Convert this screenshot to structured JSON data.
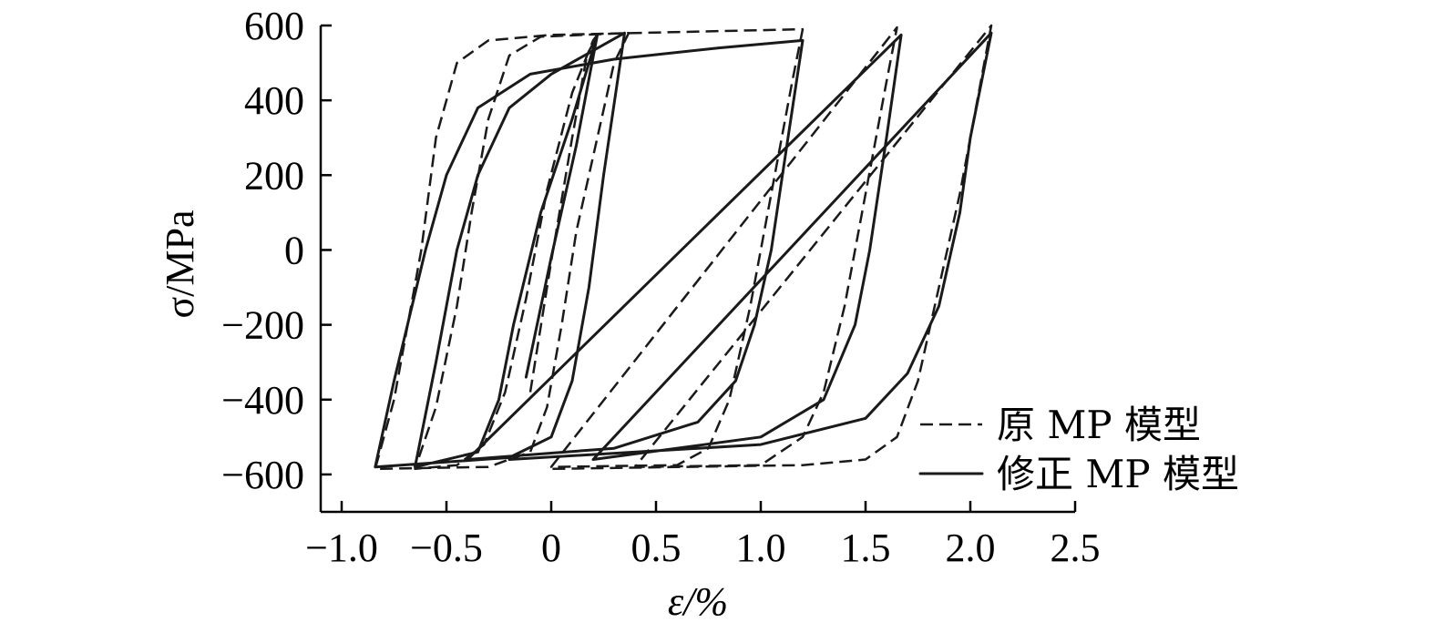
{
  "chart_data": {
    "type": "line",
    "title": "",
    "xlabel": "ε/%",
    "ylabel": "σ/MPa",
    "xlim": [
      -1.1,
      2.5
    ],
    "ylim": [
      -700,
      600
    ],
    "x_ticks": [
      -1.0,
      -0.5,
      0,
      0.5,
      1.0,
      1.5,
      2.0,
      2.5
    ],
    "x_tick_labels": [
      "−1.0",
      "−0.5",
      "0",
      "0.5",
      "1.0",
      "1.5",
      "2.0",
      "2.5"
    ],
    "y_ticks": [
      -600,
      -400,
      -200,
      0,
      200,
      400,
      600
    ],
    "y_tick_labels": [
      "−600",
      "−400",
      "−200",
      "0",
      "200",
      "400",
      "600"
    ],
    "grid": false,
    "legend_position": "bottom-right",
    "series": [
      {
        "name": "原 MP 模型",
        "style": "dashed",
        "points": [
          [
            -0.1,
            -380
          ],
          [
            0.0,
            -30
          ],
          [
            0.1,
            300
          ],
          [
            0.17,
            520
          ],
          [
            0.22,
            575
          ],
          [
            0.2,
            560
          ],
          [
            0.1,
            420
          ],
          [
            -0.02,
            160
          ],
          [
            -0.12,
            -130
          ],
          [
            -0.22,
            -380
          ],
          [
            -0.32,
            -520
          ],
          [
            -0.45,
            -575
          ],
          [
            -0.65,
            -585
          ],
          [
            -0.55,
            -420
          ],
          [
            -0.45,
            -150
          ],
          [
            -0.38,
            100
          ],
          [
            -0.3,
            350
          ],
          [
            -0.2,
            520
          ],
          [
            -0.05,
            570
          ],
          [
            0.37,
            580
          ],
          [
            0.3,
            500
          ],
          [
            0.22,
            300
          ],
          [
            0.12,
            50
          ],
          [
            0.05,
            -200
          ],
          [
            -0.02,
            -420
          ],
          [
            -0.1,
            -540
          ],
          [
            -0.3,
            -580
          ],
          [
            -0.84,
            -585
          ],
          [
            -0.75,
            -400
          ],
          [
            -0.62,
            0
          ],
          [
            -0.55,
            300
          ],
          [
            -0.45,
            500
          ],
          [
            -0.3,
            560
          ],
          [
            0.0,
            575
          ],
          [
            1.2,
            590
          ],
          [
            1.15,
            450
          ],
          [
            1.05,
            150
          ],
          [
            0.95,
            -150
          ],
          [
            0.85,
            -400
          ],
          [
            0.75,
            -530
          ],
          [
            0.6,
            -575
          ],
          [
            0.0,
            -580
          ],
          [
            1.65,
            595
          ],
          [
            1.6,
            450
          ],
          [
            1.5,
            150
          ],
          [
            1.4,
            -150
          ],
          [
            1.3,
            -380
          ],
          [
            1.2,
            -500
          ],
          [
            1.0,
            -575
          ],
          [
            0.4,
            -580
          ],
          [
            2.1,
            600
          ],
          [
            2.05,
            450
          ],
          [
            1.95,
            150
          ],
          [
            1.85,
            -100
          ],
          [
            1.75,
            -350
          ],
          [
            1.65,
            -500
          ],
          [
            1.5,
            -560
          ],
          [
            1.2,
            -575
          ],
          [
            0.0,
            -585
          ]
        ]
      },
      {
        "name": "修正 MP 模型",
        "style": "solid",
        "points": [
          [
            -0.12,
            -340
          ],
          [
            0.0,
            -20
          ],
          [
            0.12,
            280
          ],
          [
            0.22,
            575
          ],
          [
            0.1,
            350
          ],
          [
            -0.05,
            100
          ],
          [
            -0.18,
            -200
          ],
          [
            -0.25,
            -400
          ],
          [
            -0.35,
            -540
          ],
          [
            -0.65,
            -580
          ],
          [
            -0.55,
            -300
          ],
          [
            -0.45,
            0
          ],
          [
            -0.35,
            200
          ],
          [
            -0.2,
            380
          ],
          [
            0.0,
            470
          ],
          [
            0.35,
            580
          ],
          [
            0.25,
            200
          ],
          [
            0.18,
            -100
          ],
          [
            0.1,
            -350
          ],
          [
            0.0,
            -500
          ],
          [
            -0.2,
            -555
          ],
          [
            -0.84,
            -580
          ],
          [
            -0.75,
            -350
          ],
          [
            -0.6,
            0
          ],
          [
            -0.5,
            200
          ],
          [
            -0.35,
            380
          ],
          [
            -0.1,
            470
          ],
          [
            0.3,
            510
          ],
          [
            0.8,
            540
          ],
          [
            1.2,
            560
          ],
          [
            1.13,
            300
          ],
          [
            1.05,
            0
          ],
          [
            0.97,
            -200
          ],
          [
            0.88,
            -350
          ],
          [
            0.7,
            -460
          ],
          [
            0.3,
            -530
          ],
          [
            -0.4,
            -560
          ],
          [
            1.67,
            575
          ],
          [
            1.6,
            300
          ],
          [
            1.52,
            0
          ],
          [
            1.45,
            -200
          ],
          [
            1.3,
            -400
          ],
          [
            1.0,
            -500
          ],
          [
            0.2,
            -560
          ],
          [
            2.1,
            580
          ],
          [
            2.0,
            300
          ],
          [
            1.95,
            100
          ],
          [
            1.85,
            -150
          ],
          [
            1.7,
            -330
          ],
          [
            1.5,
            -450
          ],
          [
            1.0,
            -520
          ],
          [
            -0.2,
            -560
          ]
        ]
      }
    ]
  }
}
